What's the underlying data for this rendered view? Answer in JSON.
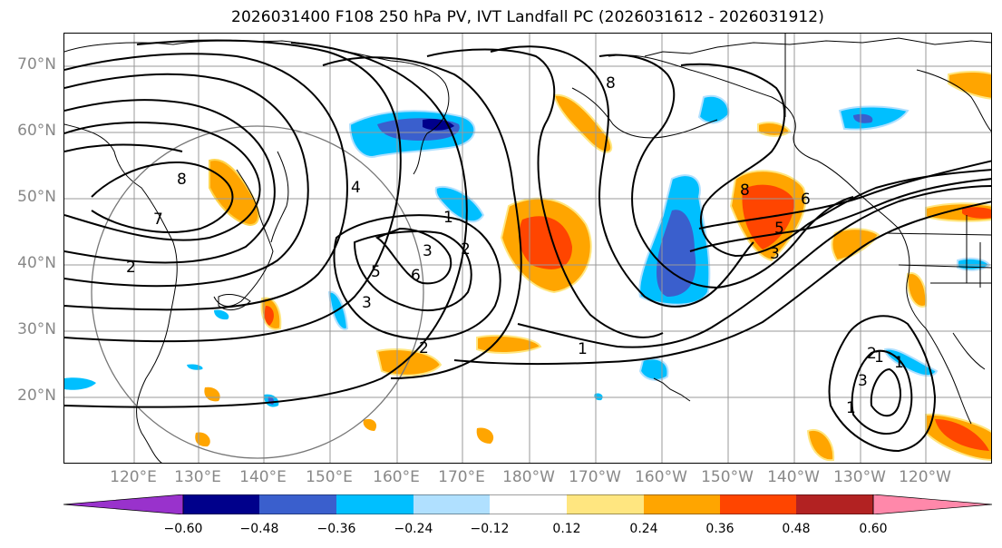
{
  "title": "2026031400 F108 250 hPa PV, IVT Landfall PC (2026031612 - 2026031912)",
  "lat_labels": [
    "70°N",
    "60°N",
    "50°N",
    "40°N",
    "30°N",
    "20°N"
  ],
  "lon_labels": [
    "120°E",
    "130°E",
    "140°E",
    "150°E",
    "160°E",
    "170°E",
    "180°W",
    "170°W",
    "160°W",
    "150°W",
    "140°W",
    "130°W",
    "120°W"
  ],
  "colorbar": {
    "ticks": [
      "−0.60",
      "−0.48",
      "−0.36",
      "−0.24",
      "−0.12",
      "0.12",
      "0.24",
      "0.36",
      "0.48",
      "0.60"
    ],
    "colors": [
      "#9932cc",
      "#00008b",
      "#3a5fcd",
      "#00bfff",
      "#b0e0ff",
      "#ffffff",
      "#ffe680",
      "#ffa500",
      "#ff4500",
      "#b22222",
      "#ff88aa"
    ]
  },
  "contour_labels": [
    "8",
    "7",
    "8",
    "4",
    "1",
    "2",
    "3",
    "5",
    "6",
    "2",
    "3",
    "1",
    "2",
    "1",
    "8",
    "5",
    "6",
    "3",
    "2",
    "3",
    "1",
    "1"
  ]
}
